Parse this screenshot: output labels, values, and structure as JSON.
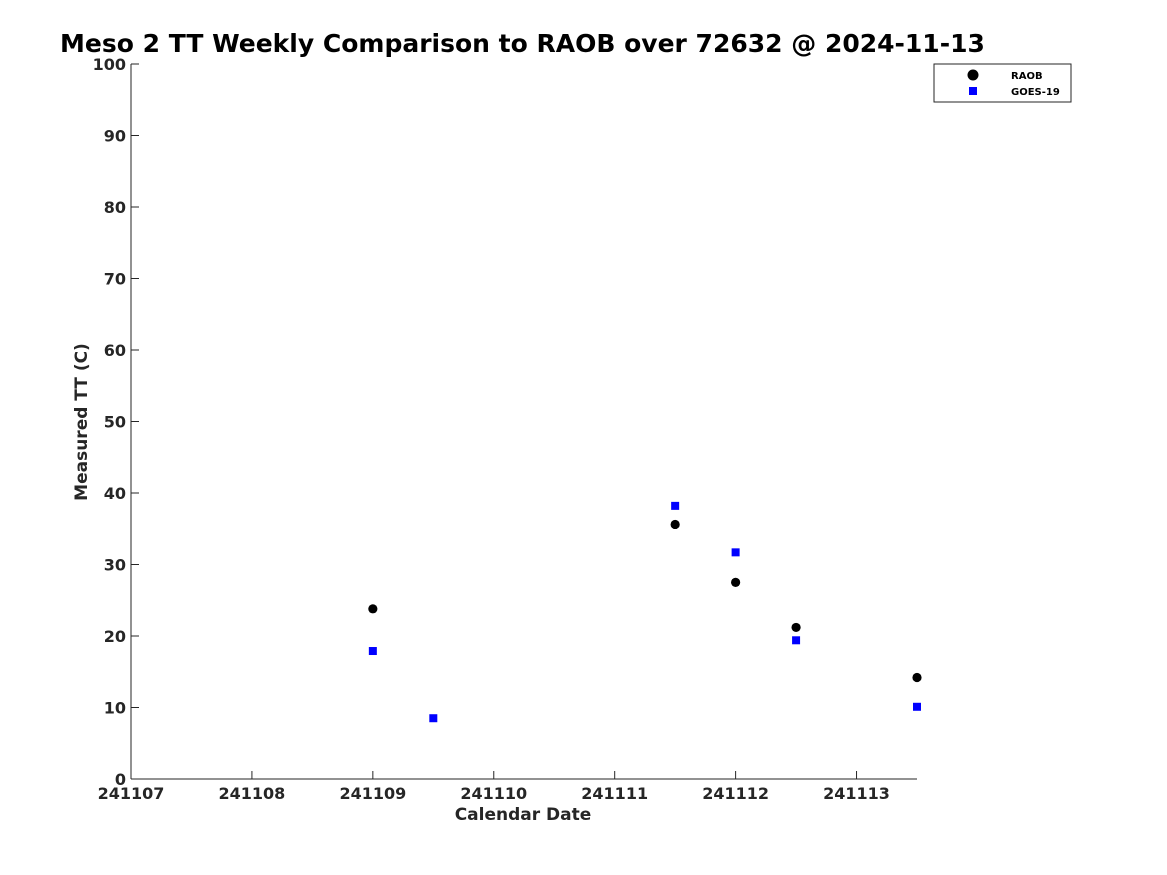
{
  "chart_data": {
    "type": "scatter",
    "title": "Meso 2 TT Weekly Comparison to RAOB over 72632 @ 2024-11-13",
    "xlabel": "Calendar Date",
    "ylabel": "Measured TT (C)",
    "x_tick_labels": [
      "241107",
      "241108",
      "241109",
      "241110",
      "241111",
      "241112",
      "241113"
    ],
    "x_tick_values": [
      "2024-11-07",
      "2024-11-08",
      "2024-11-09",
      "2024-11-10",
      "2024-11-11",
      "2024-11-12",
      "2024-11-13"
    ],
    "xlim": [
      "2024-11-07T00:00",
      "2024-11-13T12:00"
    ],
    "ylim": [
      0,
      100
    ],
    "y_ticks": [
      0,
      10,
      20,
      30,
      40,
      50,
      60,
      70,
      80,
      90,
      100
    ],
    "grid": false,
    "legend_position": "top-right",
    "series": [
      {
        "name": "RAOB",
        "marker": "circle",
        "color": "#000000",
        "points": [
          {
            "x": "2024-11-09T00:00",
            "y": 23.8
          },
          {
            "x": "2024-11-11T12:00",
            "y": 35.6
          },
          {
            "x": "2024-11-12T00:00",
            "y": 27.5
          },
          {
            "x": "2024-11-12T12:00",
            "y": 21.2
          },
          {
            "x": "2024-11-13T12:00",
            "y": 14.2
          }
        ]
      },
      {
        "name": "GOES-19",
        "marker": "square",
        "color": "#0000ff",
        "points": [
          {
            "x": "2024-11-09T00:00",
            "y": 17.9
          },
          {
            "x": "2024-11-09T12:00",
            "y": 8.5
          },
          {
            "x": "2024-11-11T12:00",
            "y": 38.2
          },
          {
            "x": "2024-11-12T00:00",
            "y": 31.7
          },
          {
            "x": "2024-11-12T12:00",
            "y": 19.4
          },
          {
            "x": "2024-11-13T12:00",
            "y": 10.1
          }
        ]
      }
    ]
  }
}
